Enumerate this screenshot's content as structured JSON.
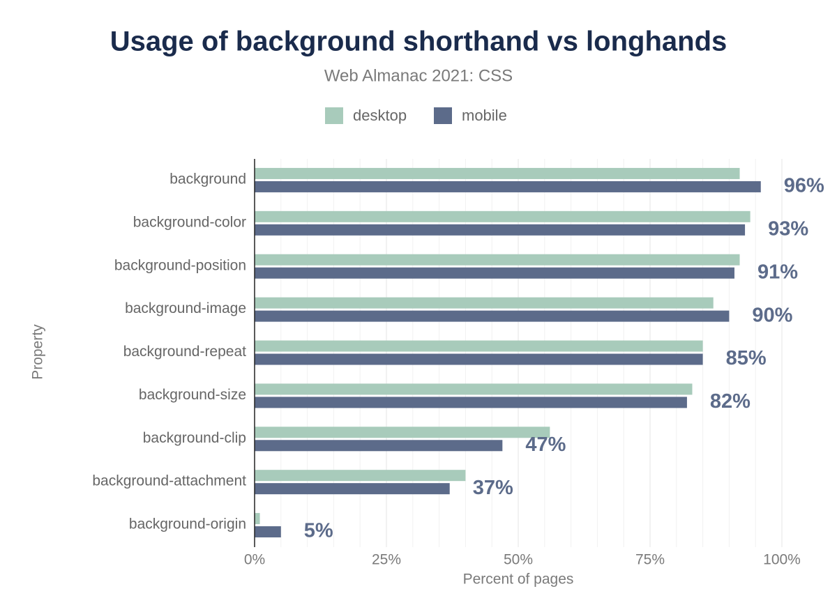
{
  "chart_data": {
    "type": "bar",
    "orientation": "horizontal",
    "title": "Usage of background shorthand vs longhands",
    "subtitle": "Web Almanac 2021: CSS",
    "x_label": "Percent of pages",
    "y_label": "Property",
    "categories": [
      "background",
      "background-color",
      "background-position",
      "background-image",
      "background-repeat",
      "background-size",
      "background-clip",
      "background-attachment",
      "background-origin"
    ],
    "series": [
      {
        "name": "desktop",
        "color": "#a8cbbb",
        "values": [
          92,
          94,
          92,
          87,
          85,
          83,
          56,
          40,
          1
        ]
      },
      {
        "name": "mobile",
        "color": "#5c6b8a",
        "values": [
          96,
          93,
          91,
          90,
          85,
          82,
          47,
          37,
          5
        ],
        "value_labels": [
          "96%",
          "93%",
          "91%",
          "90%",
          "85%",
          "82%",
          "47%",
          "37%",
          "5%"
        ]
      }
    ],
    "xlim": [
      0,
      100
    ],
    "xticks": [
      {
        "value": 0,
        "label": "0%"
      },
      {
        "value": 25,
        "label": "25%"
      },
      {
        "value": 50,
        "label": "50%"
      },
      {
        "value": 75,
        "label": "75%"
      },
      {
        "value": 100,
        "label": "100%"
      }
    ],
    "minor_xticks": [
      5,
      10,
      15,
      20,
      30,
      35,
      40,
      45,
      55,
      60,
      65,
      70,
      80,
      85,
      90,
      95
    ],
    "grid": true,
    "legend": "top"
  }
}
